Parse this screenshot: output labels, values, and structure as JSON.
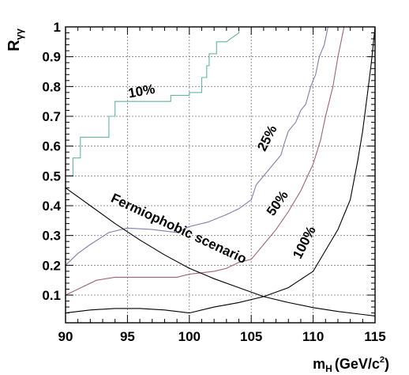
{
  "chart_data": {
    "type": "line",
    "title": "",
    "xlabel_main": "m",
    "xlabel_sub": "H",
    "xlabel_unit": "(GeV/c",
    "xlabel_sup": "2",
    "xlabel_close": ")",
    "ylabel_main": "R",
    "ylabel_sub": "γγ",
    "xlim": [
      90,
      115
    ],
    "ylim": [
      0.02,
      1.0
    ],
    "grid": true,
    "x_ticks": [
      90,
      95,
      100,
      105,
      110,
      115
    ],
    "x_tick_labels": [
      "90",
      "95",
      "100",
      "105",
      "110",
      "115"
    ],
    "y_ticks": [
      0.1,
      0.2,
      0.3,
      0.4,
      0.5,
      0.6,
      0.7,
      0.8,
      0.9,
      1.0
    ],
    "y_tick_labels": [
      "0.1",
      "0.2",
      "0.3",
      "0.4",
      "0.5",
      "0.6",
      "0.7",
      "0.8",
      "0.9",
      "1"
    ],
    "series": [
      {
        "label": "10%",
        "color": "#66b3a3",
        "points": [
          [
            90.0,
            0.5
          ],
          [
            90.6,
            0.5
          ],
          [
            90.6,
            0.56
          ],
          [
            91.2,
            0.56
          ],
          [
            91.2,
            0.63
          ],
          [
            93.5,
            0.63
          ],
          [
            93.5,
            0.7
          ],
          [
            94.0,
            0.7
          ],
          [
            94.0,
            0.75
          ],
          [
            98.5,
            0.75
          ],
          [
            98.5,
            0.77
          ],
          [
            100.0,
            0.77
          ],
          [
            100.0,
            0.78
          ],
          [
            101.0,
            0.78
          ],
          [
            101.0,
            0.83
          ],
          [
            101.4,
            0.83
          ],
          [
            101.4,
            0.87
          ],
          [
            101.6,
            0.87
          ],
          [
            101.6,
            0.91
          ],
          [
            102.2,
            0.91
          ],
          [
            102.2,
            0.95
          ],
          [
            103.0,
            0.95
          ],
          [
            104.0,
            0.98
          ],
          [
            104.0,
            1.0
          ]
        ],
        "label_pos": [
          96.2,
          0.77
        ],
        "label_angle": -10
      },
      {
        "label": "25%",
        "color": "#7f7fb0",
        "points": [
          [
            90.0,
            0.2
          ],
          [
            91.0,
            0.24
          ],
          [
            92.0,
            0.27
          ],
          [
            93.5,
            0.31
          ],
          [
            95.0,
            0.325
          ],
          [
            97.0,
            0.32
          ],
          [
            99.0,
            0.31
          ],
          [
            100.0,
            0.33
          ],
          [
            101.5,
            0.345
          ],
          [
            103.0,
            0.37
          ],
          [
            104.0,
            0.39
          ],
          [
            105.0,
            0.42
          ],
          [
            105.4,
            0.47
          ],
          [
            105.8,
            0.49
          ],
          [
            106.6,
            0.53
          ],
          [
            107.4,
            0.57
          ],
          [
            107.6,
            0.6
          ],
          [
            108.0,
            0.65
          ],
          [
            108.6,
            0.68
          ],
          [
            109.0,
            0.72
          ],
          [
            109.4,
            0.74
          ],
          [
            109.8,
            0.8
          ],
          [
            110.2,
            0.84
          ],
          [
            110.5,
            0.9
          ],
          [
            110.9,
            0.94
          ],
          [
            111.2,
            1.0
          ]
        ],
        "label_pos": [
          106.6,
          0.62
        ],
        "label_angle": -63
      },
      {
        "label": "50%",
        "color": "#9c6670",
        "points": [
          [
            90.0,
            0.1
          ],
          [
            91.0,
            0.12
          ],
          [
            92.5,
            0.15
          ],
          [
            94.0,
            0.16
          ],
          [
            97.0,
            0.16
          ],
          [
            99.0,
            0.16
          ],
          [
            100.0,
            0.17
          ],
          [
            102.0,
            0.18
          ],
          [
            103.0,
            0.19
          ],
          [
            104.0,
            0.21
          ],
          [
            105.0,
            0.22
          ],
          [
            106.0,
            0.27
          ],
          [
            107.0,
            0.32
          ],
          [
            108.0,
            0.38
          ],
          [
            109.0,
            0.45
          ],
          [
            110.0,
            0.54
          ],
          [
            110.6,
            0.62
          ],
          [
            111.0,
            0.7
          ],
          [
            111.6,
            0.8
          ],
          [
            112.0,
            0.9
          ],
          [
            112.5,
            1.0
          ]
        ],
        "label_pos": [
          107.4,
          0.4
        ],
        "label_angle": -55
      },
      {
        "label": "100%",
        "color": "#000000",
        "points": [
          [
            90.0,
            0.04
          ],
          [
            92.0,
            0.05
          ],
          [
            94.0,
            0.055
          ],
          [
            96.0,
            0.055
          ],
          [
            98.0,
            0.05
          ],
          [
            100.0,
            0.04
          ],
          [
            102.0,
            0.06
          ],
          [
            104.0,
            0.075
          ],
          [
            106.0,
            0.095
          ],
          [
            108.0,
            0.125
          ],
          [
            110.0,
            0.18
          ],
          [
            111.0,
            0.25
          ],
          [
            112.0,
            0.32
          ],
          [
            113.0,
            0.42
          ],
          [
            113.6,
            0.55
          ],
          [
            114.0,
            0.65
          ],
          [
            114.4,
            0.78
          ],
          [
            114.7,
            0.88
          ],
          [
            115.0,
            1.0
          ]
        ],
        "label_pos": [
          109.6,
          0.27
        ],
        "label_angle": -63
      },
      {
        "label": "Fermiophobic scenario",
        "color": "#000000",
        "points": [
          [
            90.0,
            0.46
          ],
          [
            92.0,
            0.4
          ],
          [
            94.0,
            0.34
          ],
          [
            96.0,
            0.285
          ],
          [
            98.0,
            0.235
          ],
          [
            100.0,
            0.19
          ],
          [
            102.0,
            0.155
          ],
          [
            104.0,
            0.125
          ],
          [
            106.0,
            0.095
          ],
          [
            108.0,
            0.075
          ],
          [
            110.0,
            0.058
          ],
          [
            112.0,
            0.045
          ],
          [
            114.0,
            0.035
          ],
          [
            115.0,
            0.03
          ]
        ],
        "label_pos": [
          99.0,
          0.31
        ],
        "label_angle": 25
      }
    ]
  }
}
